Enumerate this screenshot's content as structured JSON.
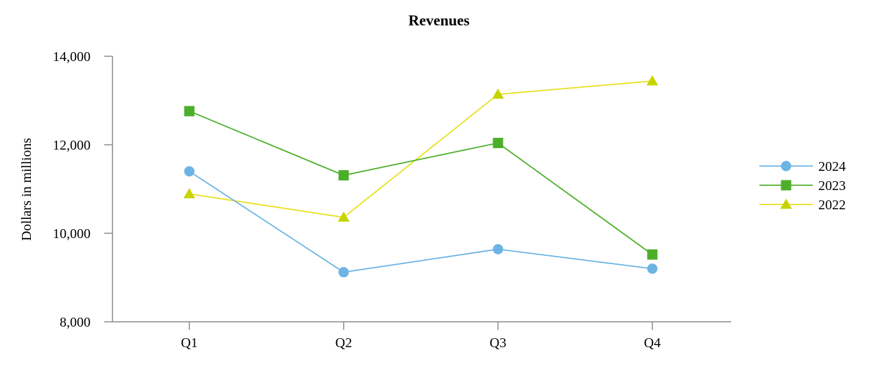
{
  "chart_data": {
    "type": "line",
    "title": "Revenues",
    "xlabel": "",
    "ylabel": "Dollars in millions",
    "categories": [
      "Q1",
      "Q2",
      "Q3",
      "Q4"
    ],
    "ylim": [
      8000,
      14000
    ],
    "yticks": [
      8000,
      10000,
      12000,
      14000
    ],
    "ytick_labels": [
      "8,000",
      "10,000",
      "12,000",
      "14,000"
    ],
    "grid": false,
    "legend_position": "right",
    "series": [
      {
        "name": "2024",
        "color": "#6CB4E4",
        "marker": "circle",
        "values": [
          11400,
          9120,
          9640,
          9200
        ]
      },
      {
        "name": "2023",
        "color": "#4CAF2A",
        "marker": "square",
        "values": [
          12760,
          11310,
          12040,
          9520
        ]
      },
      {
        "name": "2022",
        "color": "#E8E020",
        "marker": "triangle",
        "marker_color": "#C8D400",
        "values": [
          10890,
          10360,
          13140,
          13440
        ]
      }
    ]
  }
}
